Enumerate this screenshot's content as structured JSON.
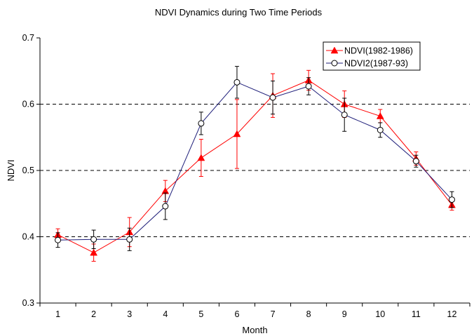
{
  "chart_data": {
    "type": "line",
    "title": "NDVI Dynamics during Two Time Periods",
    "xlabel": "Month",
    "ylabel": "NDVI",
    "x": [
      1,
      2,
      3,
      4,
      5,
      6,
      7,
      8,
      9,
      10,
      11,
      12
    ],
    "x_tick_labels": [
      "1",
      "2",
      "3",
      "4",
      "5",
      "6",
      "7",
      "8",
      "9",
      "10",
      "11",
      "12"
    ],
    "ylim": [
      0.3,
      0.7
    ],
    "y_ticks": [
      0.3,
      0.4,
      0.5,
      0.6,
      0.7
    ],
    "y_tick_labels": [
      "0.3",
      "0.4",
      "0.5",
      "0.6",
      "0.7"
    ],
    "grid": "horizontal dashed at 0.4, 0.5, 0.6",
    "legend_position": "top-right",
    "series": [
      {
        "name": "NDVI(1982-1986)",
        "color": "#ff0000",
        "marker": "filled-triangle",
        "values": [
          0.403,
          0.376,
          0.407,
          0.469,
          0.519,
          0.555,
          0.613,
          0.636,
          0.6,
          0.582,
          0.518,
          0.448
        ],
        "errors": [
          0.009,
          0.013,
          0.022,
          0.016,
          0.028,
          0.052,
          0.033,
          0.015,
          0.02,
          0.01,
          0.01,
          0.008
        ]
      },
      {
        "name": "NDVI2(1987-93)",
        "color": "#1f1f7a",
        "marker": "open-circle",
        "values": [
          0.395,
          0.396,
          0.396,
          0.446,
          0.571,
          0.633,
          0.61,
          0.627,
          0.584,
          0.561,
          0.514,
          0.456
        ],
        "errors": [
          0.011,
          0.014,
          0.017,
          0.02,
          0.017,
          0.024,
          0.025,
          0.013,
          0.025,
          0.011,
          0.009,
          0.012
        ]
      }
    ]
  }
}
